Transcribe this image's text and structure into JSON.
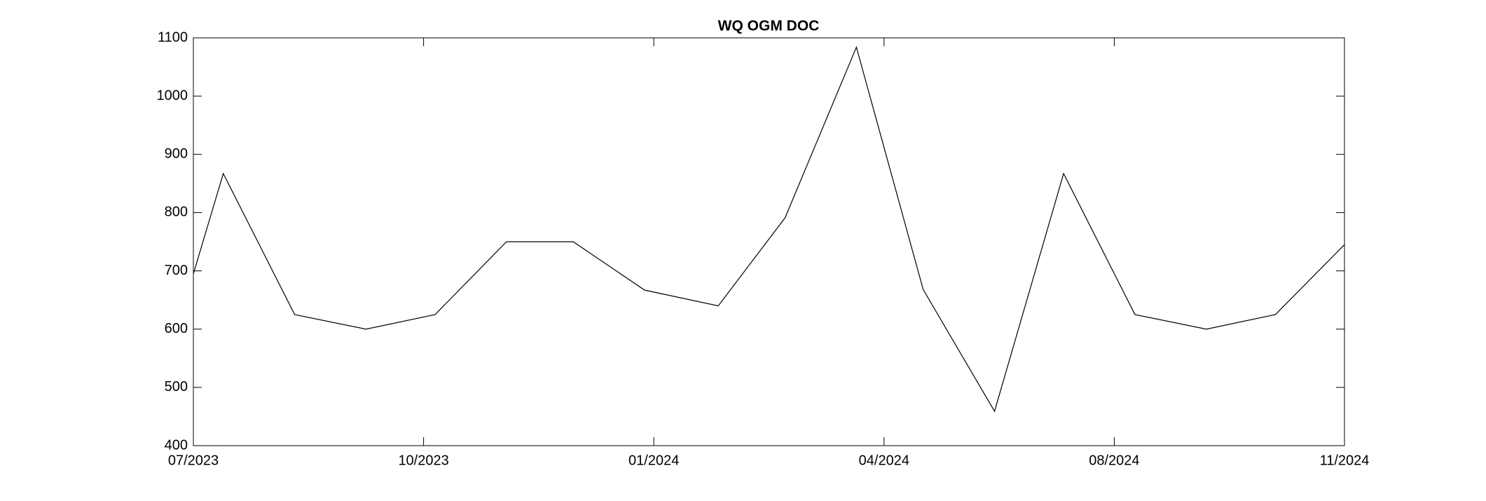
{
  "chart_data": {
    "type": "line",
    "title": "WQ OGM DOC",
    "x": [
      0,
      0.13,
      0.44,
      0.75,
      1.05,
      1.36,
      1.65,
      1.96,
      2.28,
      2.57,
      2.88,
      3.17,
      3.48,
      3.78,
      4.09,
      4.4,
      4.7,
      5.0
    ],
    "series": [
      {
        "color": "#000000",
        "values": [
          695,
          867,
          625,
          600,
          625,
          750,
          750,
          667,
          640,
          791,
          1084,
          668,
          459,
          867,
          625,
          600,
          625,
          745
        ]
      }
    ],
    "xlim": [
      0,
      5
    ],
    "xticks": [
      {
        "value": 0,
        "label": "07/2023"
      },
      {
        "value": 1,
        "label": "10/2023"
      },
      {
        "value": 2,
        "label": "01/2024"
      },
      {
        "value": 3,
        "label": "04/2024"
      },
      {
        "value": 4,
        "label": "08/2024"
      },
      {
        "value": 5,
        "label": "11/2024"
      }
    ],
    "ylim": [
      400,
      1100
    ],
    "yticks": [
      400,
      500,
      600,
      700,
      800,
      900,
      1000,
      1100
    ],
    "grid": false
  }
}
